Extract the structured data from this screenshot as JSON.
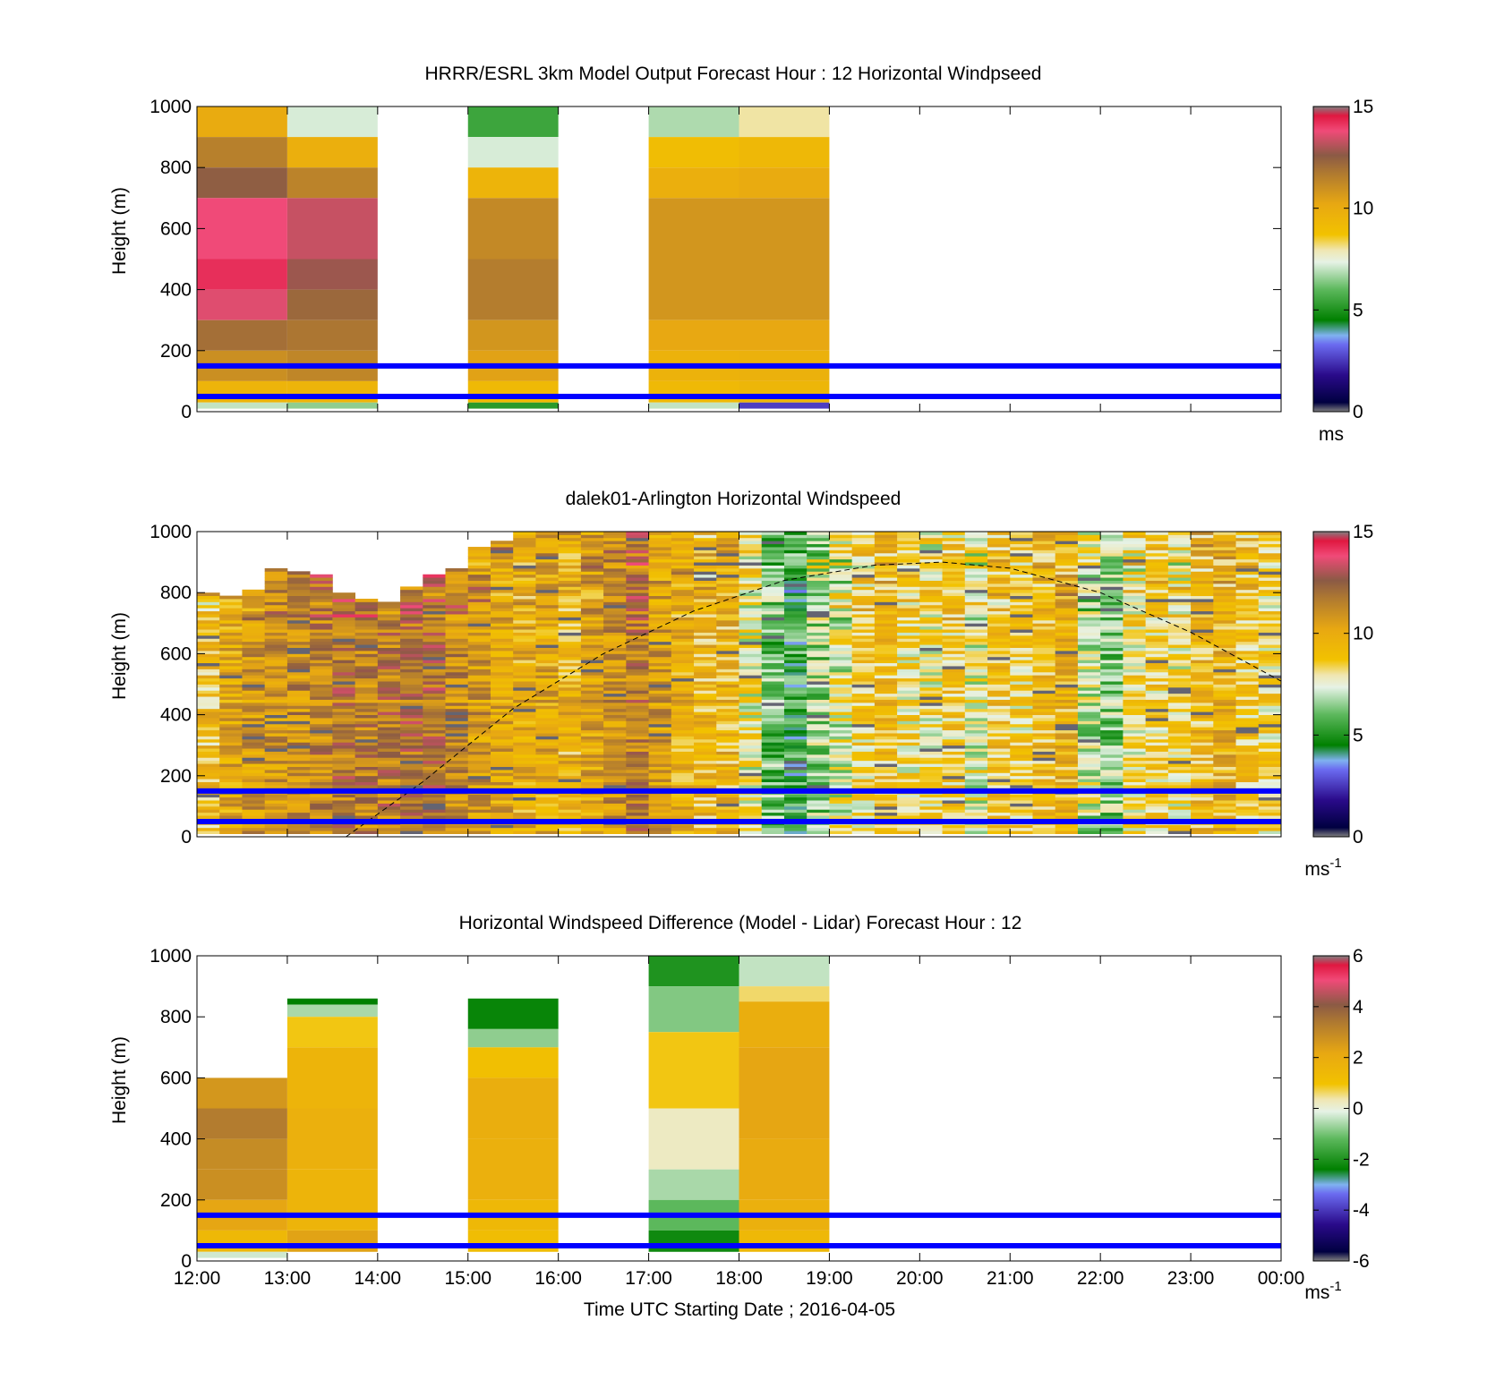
{
  "figure": {
    "x_ticks": [
      "12:00",
      "13:00",
      "14:00",
      "15:00",
      "16:00",
      "17:00",
      "18:00",
      "19:00",
      "20:00",
      "21:00",
      "22:00",
      "23:00",
      "00:00"
    ],
    "xlabel": "Time UTC  Starting Date ; 2016-04-05",
    "guide_line_heights_m": [
      150,
      50
    ],
    "guide_line_color": "#0000ff"
  },
  "chart_data": [
    {
      "type": "heatmap",
      "title": "HRRR/ESRL 3km Model Output   Forecast Hour : 12 Horizontal Windpseed",
      "ylabel": "Height (m)",
      "ylim": [
        0,
        1000
      ],
      "y_ticks": [
        "0",
        "200",
        "400",
        "600",
        "800",
        "1000"
      ],
      "colorbar": {
        "ticks": [
          "0",
          "5",
          "10",
          "15"
        ],
        "range": [
          0,
          15
        ],
        "unit": "ms",
        "unit_sup": ""
      },
      "column_width_hours": 1,
      "columns": [
        {
          "start_hour": 12,
          "cells": [
            [
              900,
              1000,
              10
            ],
            [
              800,
              900,
              11.5
            ],
            [
              700,
              800,
              12.5
            ],
            [
              500,
              700,
              13.8
            ],
            [
              400,
              500,
              14.2
            ],
            [
              300,
              400,
              13.6
            ],
            [
              200,
              300,
              12
            ],
            [
              100,
              200,
              11
            ],
            [
              30,
              100,
              9.5
            ],
            [
              10,
              30,
              7
            ]
          ]
        },
        {
          "start_hour": 13,
          "cells": [
            [
              900,
              1000,
              7.2
            ],
            [
              800,
              900,
              9.8
            ],
            [
              700,
              800,
              11.4
            ],
            [
              500,
              700,
              13.3
            ],
            [
              400,
              500,
              12.8
            ],
            [
              300,
              400,
              12.2
            ],
            [
              200,
              300,
              11.8
            ],
            [
              100,
              200,
              11.3
            ],
            [
              30,
              100,
              9.5
            ],
            [
              10,
              30,
              6.5
            ]
          ]
        },
        {
          "start_hour": 15,
          "cells": [
            [
              900,
              1000,
              5.5
            ],
            [
              800,
              900,
              7.2
            ],
            [
              700,
              800,
              9.5
            ],
            [
              500,
              700,
              11.2
            ],
            [
              300,
              500,
              11.6
            ],
            [
              200,
              300,
              10.8
            ],
            [
              100,
              200,
              10.4
            ],
            [
              30,
              100,
              9.2
            ],
            [
              10,
              30,
              5.2
            ]
          ]
        },
        {
          "start_hour": 17,
          "cells": [
            [
              900,
              1000,
              6.8
            ],
            [
              800,
              900,
              9
            ],
            [
              700,
              800,
              9.8
            ],
            [
              300,
              700,
              10.8
            ],
            [
              200,
              300,
              10.2
            ],
            [
              100,
              200,
              9.6
            ],
            [
              30,
              100,
              9.2
            ],
            [
              10,
              30,
              7
            ]
          ]
        },
        {
          "start_hour": 18,
          "cells": [
            [
              900,
              1000,
              8
            ],
            [
              800,
              900,
              9.3
            ],
            [
              700,
              800,
              10
            ],
            [
              300,
              700,
              10.8
            ],
            [
              200,
              300,
              10.2
            ],
            [
              100,
              200,
              9.7
            ],
            [
              30,
              100,
              9.4
            ],
            [
              10,
              30,
              2.6
            ]
          ]
        }
      ]
    },
    {
      "type": "heatmap",
      "title": "dalek01-Arlington  Horizontal Windspeed",
      "ylabel": "Height (m)",
      "ylim": [
        0,
        1000
      ],
      "y_ticks": [
        "0",
        "200",
        "400",
        "600",
        "800",
        "1000"
      ],
      "colorbar": {
        "ticks": [
          "0",
          "5",
          "10",
          "15"
        ],
        "range": [
          0,
          15
        ],
        "unit": "ms",
        "unit_sup": "-1"
      },
      "column_width_hours": 0.25,
      "columns": [
        {
          "start_hour": 12.0,
          "top": 800,
          "base": 9.0
        },
        {
          "start_hour": 12.25,
          "top": 790,
          "base": 10.0
        },
        {
          "start_hour": 12.5,
          "top": 810,
          "base": 10.5
        },
        {
          "start_hour": 12.75,
          "top": 880,
          "base": 10.8
        },
        {
          "start_hour": 13.0,
          "top": 870,
          "base": 11.0
        },
        {
          "start_hour": 13.25,
          "top": 860,
          "base": 11.4
        },
        {
          "start_hour": 13.5,
          "top": 800,
          "base": 11.8
        },
        {
          "start_hour": 13.75,
          "top": 780,
          "base": 11.5
        },
        {
          "start_hour": 14.0,
          "top": 770,
          "base": 11.6
        },
        {
          "start_hour": 14.25,
          "top": 820,
          "base": 11.9
        },
        {
          "start_hour": 14.5,
          "top": 860,
          "base": 12.1
        },
        {
          "start_hour": 14.75,
          "top": 880,
          "base": 11.0
        },
        {
          "start_hour": 15.0,
          "top": 950,
          "base": 10.6
        },
        {
          "start_hour": 15.25,
          "top": 970,
          "base": 10.2
        },
        {
          "start_hour": 15.5,
          "top": 1000,
          "base": 9.8
        },
        {
          "start_hour": 15.75,
          "top": 1000,
          "base": 10.0
        },
        {
          "start_hour": 16.0,
          "top": 1000,
          "base": 9.5
        },
        {
          "start_hour": 16.25,
          "top": 1000,
          "base": 10.2
        },
        {
          "start_hour": 16.5,
          "top": 1000,
          "base": 10.8
        },
        {
          "start_hour": 16.75,
          "top": 1000,
          "base": 11.6
        },
        {
          "start_hour": 17.0,
          "top": 1000,
          "base": 10.5
        },
        {
          "start_hour": 17.25,
          "top": 1000,
          "base": 9.6
        },
        {
          "start_hour": 17.5,
          "top": 1000,
          "base": 9.2
        },
        {
          "start_hour": 17.75,
          "top": 1000,
          "base": 9.4
        },
        {
          "start_hour": 18.0,
          "top": 1000,
          "base": 7.8
        },
        {
          "start_hour": 18.25,
          "top": 1000,
          "base": 6.0
        },
        {
          "start_hour": 18.5,
          "top": 1000,
          "base": 5.2
        },
        {
          "start_hour": 18.75,
          "top": 1000,
          "base": 6.6
        },
        {
          "start_hour": 19.0,
          "top": 1000,
          "base": 7.4
        },
        {
          "start_hour": 19.25,
          "top": 1000,
          "base": 8.4
        },
        {
          "start_hour": 19.5,
          "top": 1000,
          "base": 9.0
        },
        {
          "start_hour": 19.75,
          "top": 1000,
          "base": 8.2
        },
        {
          "start_hour": 20.0,
          "top": 1000,
          "base": 8.0
        },
        {
          "start_hour": 20.25,
          "top": 1000,
          "base": 8.6
        },
        {
          "start_hour": 20.5,
          "top": 1000,
          "base": 7.6
        },
        {
          "start_hour": 20.75,
          "top": 1000,
          "base": 8.9
        },
        {
          "start_hour": 21.0,
          "top": 1000,
          "base": 8.4
        },
        {
          "start_hour": 21.25,
          "top": 1000,
          "base": 9.2
        },
        {
          "start_hour": 21.5,
          "top": 1000,
          "base": 9.6
        },
        {
          "start_hour": 21.75,
          "top": 1000,
          "base": 7.0
        },
        {
          "start_hour": 22.0,
          "top": 1000,
          "base": 6.4
        },
        {
          "start_hour": 22.25,
          "top": 1000,
          "base": 8.2
        },
        {
          "start_hour": 22.5,
          "top": 1000,
          "base": 8.6
        },
        {
          "start_hour": 22.75,
          "top": 1000,
          "base": 8.0
        },
        {
          "start_hour": 23.0,
          "top": 1000,
          "base": 9.2
        },
        {
          "start_hour": 23.25,
          "top": 1000,
          "base": 9.6
        },
        {
          "start_hour": 23.5,
          "top": 1000,
          "base": 8.8
        },
        {
          "start_hour": 23.75,
          "top": 1000,
          "base": 8.4
        }
      ],
      "dashed_curve": [
        [
          13.65,
          0
        ],
        [
          14.5,
          180
        ],
        [
          15.5,
          420
        ],
        [
          16.5,
          600
        ],
        [
          17.5,
          740
        ],
        [
          18.5,
          840
        ],
        [
          19.5,
          890
        ],
        [
          20.25,
          900
        ],
        [
          21.0,
          880
        ],
        [
          22.0,
          800
        ],
        [
          23.0,
          670
        ],
        [
          24.0,
          510
        ]
      ]
    },
    {
      "type": "heatmap",
      "title": "Horizontal Windspeed Difference (Model - Lidar) Forecast Hour : 12",
      "ylabel": "Height (m)",
      "ylim": [
        0,
        1000
      ],
      "y_ticks": [
        "0",
        "200",
        "400",
        "600",
        "800",
        "1000"
      ],
      "colorbar": {
        "ticks": [
          "-6",
          "-4",
          "-2",
          "0",
          "2",
          "4",
          "6"
        ],
        "range": [
          -6,
          6
        ],
        "unit": "ms",
        "unit_sup": "-1"
      },
      "column_width_hours": 1,
      "columns": [
        {
          "start_hour": 12,
          "cells": [
            [
              500,
              600,
              2.6
            ],
            [
              400,
              500,
              3.3
            ],
            [
              300,
              400,
              2.9
            ],
            [
              200,
              300,
              2.8
            ],
            [
              100,
              200,
              2.2
            ],
            [
              30,
              100,
              1.4
            ],
            [
              10,
              30,
              -0.3
            ]
          ]
        },
        {
          "start_hour": 13,
          "cells": [
            [
              840,
              860,
              -2.4
            ],
            [
              800,
              840,
              -0.6
            ],
            [
              700,
              800,
              0.9
            ],
            [
              500,
              700,
              1.6
            ],
            [
              300,
              500,
              1.8
            ],
            [
              100,
              300,
              1.6
            ],
            [
              30,
              100,
              2.3
            ]
          ]
        },
        {
          "start_hour": 15,
          "cells": [
            [
              760,
              860,
              -2.3
            ],
            [
              700,
              760,
              -0.8
            ],
            [
              600,
              700,
              1.1
            ],
            [
              400,
              600,
              1.9
            ],
            [
              200,
              400,
              1.8
            ],
            [
              100,
              200,
              1.4
            ],
            [
              30,
              100,
              1.2
            ]
          ]
        },
        {
          "start_hour": 17,
          "cells": [
            [
              900,
              1000,
              -2.0
            ],
            [
              750,
              900,
              -0.9
            ],
            [
              500,
              750,
              0.9
            ],
            [
              300,
              500,
              0.2
            ],
            [
              200,
              300,
              -0.6
            ],
            [
              100,
              200,
              -1.2
            ],
            [
              30,
              100,
              -2.2
            ]
          ]
        },
        {
          "start_hour": 18,
          "cells": [
            [
              900,
              1000,
              -0.4
            ],
            [
              850,
              900,
              0.6
            ],
            [
              700,
              850,
              1.9
            ],
            [
              400,
              700,
              2.2
            ],
            [
              200,
              400,
              2.0
            ],
            [
              100,
              200,
              1.8
            ],
            [
              30,
              100,
              1.4
            ]
          ]
        }
      ]
    }
  ]
}
